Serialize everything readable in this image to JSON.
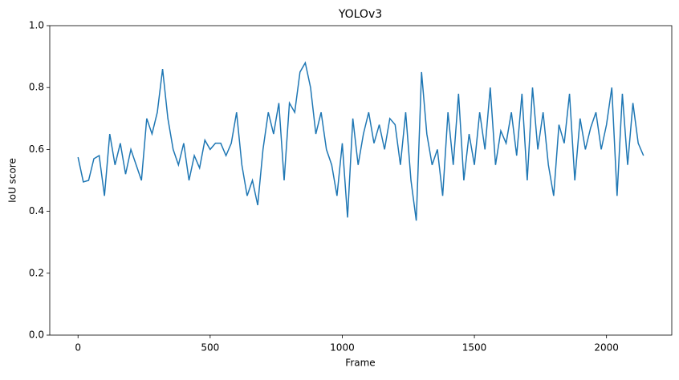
{
  "chart_data": {
    "type": "line",
    "title": "YOLOv3",
    "xlabel": "Frame",
    "ylabel": "IoU score",
    "x": [
      0,
      20,
      40,
      60,
      80,
      100,
      120,
      140,
      160,
      180,
      200,
      220,
      240,
      260,
      280,
      300,
      320,
      340,
      360,
      380,
      400,
      420,
      440,
      460,
      480,
      500,
      520,
      540,
      560,
      580,
      600,
      620,
      640,
      660,
      680,
      700,
      720,
      740,
      760,
      780,
      800,
      820,
      840,
      860,
      880,
      900,
      920,
      940,
      960,
      980,
      1000,
      1020,
      1040,
      1060,
      1080,
      1100,
      1120,
      1140,
      1160,
      1180,
      1200,
      1220,
      1240,
      1260,
      1280,
      1300,
      1320,
      1340,
      1360,
      1380,
      1400,
      1420,
      1440,
      1460,
      1480,
      1500,
      1520,
      1540,
      1560,
      1580,
      1600,
      1620,
      1640,
      1660,
      1680,
      1700,
      1720,
      1740,
      1760,
      1780,
      1800,
      1820,
      1840,
      1860,
      1880,
      1900,
      1920,
      1940,
      1960,
      1980,
      2000,
      2020,
      2040,
      2060,
      2080,
      2100,
      2120,
      2140
    ],
    "series": [
      {
        "color": "#1f77b4",
        "values": [
          0.575,
          0.495,
          0.5,
          0.57,
          0.58,
          0.45,
          0.65,
          0.55,
          0.62,
          0.52,
          0.6,
          0.55,
          0.5,
          0.7,
          0.65,
          0.72,
          0.86,
          0.7,
          0.6,
          0.55,
          0.62,
          0.5,
          0.58,
          0.54,
          0.63,
          0.6,
          0.62,
          0.62,
          0.58,
          0.62,
          0.72,
          0.55,
          0.45,
          0.5,
          0.42,
          0.6,
          0.72,
          0.65,
          0.75,
          0.5,
          0.75,
          0.72,
          0.85,
          0.88,
          0.8,
          0.65,
          0.72,
          0.6,
          0.55,
          0.45,
          0.62,
          0.38,
          0.7,
          0.55,
          0.65,
          0.72,
          0.62,
          0.68,
          0.6,
          0.7,
          0.68,
          0.55,
          0.72,
          0.5,
          0.37,
          0.85,
          0.65,
          0.55,
          0.6,
          0.45,
          0.72,
          0.55,
          0.78,
          0.5,
          0.65,
          0.55,
          0.72,
          0.6,
          0.8,
          0.55,
          0.66,
          0.62,
          0.72,
          0.58,
          0.78,
          0.5,
          0.8,
          0.6,
          0.72,
          0.55,
          0.45,
          0.68,
          0.62,
          0.78,
          0.5,
          0.7,
          0.6,
          0.67,
          0.72,
          0.6,
          0.68,
          0.8,
          0.45,
          0.78,
          0.55,
          0.75,
          0.62,
          0.58
        ]
      }
    ],
    "xlim": [
      -107,
      2247
    ],
    "xticks": [
      0,
      500,
      1000,
      1500,
      2000
    ],
    "ylim": [
      0,
      1
    ],
    "yticks": [
      {
        "value": 0,
        "label": "0.0"
      },
      0.2,
      0.4,
      0.6,
      0.8,
      {
        "value": 1,
        "label": "1.0"
      }
    ]
  }
}
